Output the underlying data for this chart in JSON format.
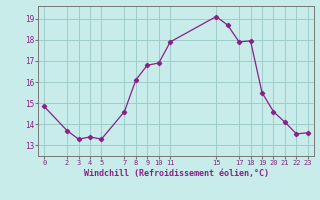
{
  "x": [
    0,
    2,
    3,
    4,
    5,
    7,
    8,
    9,
    10,
    11,
    15,
    16,
    17,
    18,
    19,
    20,
    21,
    22,
    23
  ],
  "y": [
    14.85,
    13.7,
    13.3,
    13.4,
    13.3,
    14.6,
    16.1,
    16.8,
    16.9,
    17.9,
    19.1,
    18.7,
    17.9,
    17.95,
    15.5,
    14.6,
    14.1,
    13.55,
    13.6
  ],
  "line_color": "#882288",
  "bg_color": "#c8ecea",
  "grid_color": "#a0cccc",
  "xlabel": "Windchill (Refroidissement éolien,°C)",
  "ylim": [
    12.5,
    19.6
  ],
  "xlim": [
    -0.5,
    23.5
  ]
}
